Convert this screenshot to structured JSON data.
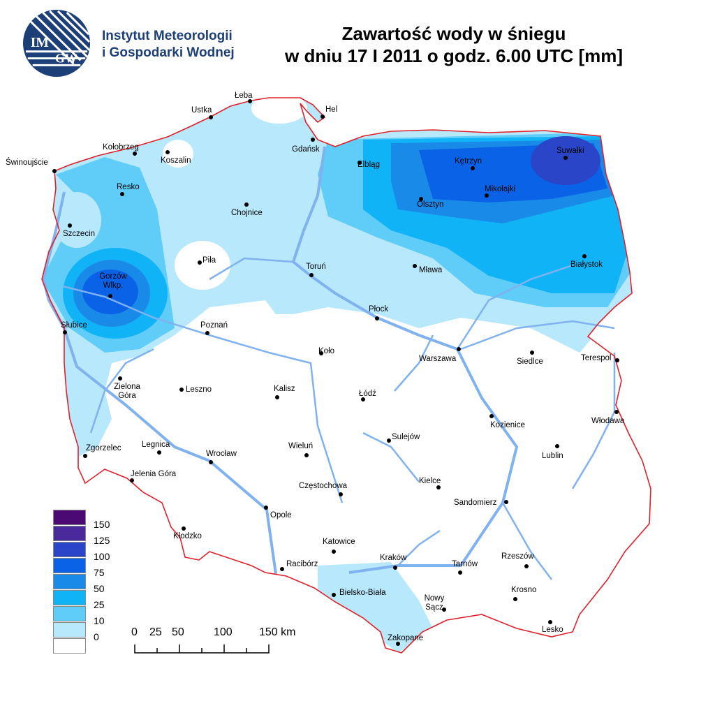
{
  "header": {
    "org_line1": "Instytut Meteorologii",
    "org_line2": "i Gospodarki Wodnej",
    "logo_text": "IMGW",
    "title_line1": "Zawartość wody w śniegu",
    "title_line2": "w dniu 17 I 2011 o godz. 6.00 UTC [mm]"
  },
  "legend": {
    "classes": [
      {
        "label": "150",
        "color": "#4b0a73"
      },
      {
        "label": "125",
        "color": "#4a2a9a"
      },
      {
        "label": "100",
        "color": "#2a45c8"
      },
      {
        "label": "75",
        "color": "#0a62e6"
      },
      {
        "label": "50",
        "color": "#1a8ae8"
      },
      {
        "label": "25",
        "color": "#10b4f6"
      },
      {
        "label": "10",
        "color": "#60ccf8"
      },
      {
        "label": "0",
        "color": "#b8e8fb"
      },
      {
        "label": "",
        "color": "#ffffff"
      }
    ]
  },
  "scale": {
    "labels": [
      "0",
      "25",
      "50",
      "100",
      "150 km"
    ]
  },
  "colors": {
    "border": "#e0202a",
    "river": "#7fb2ee"
  },
  "cities": [
    "Łeba",
    "Hel",
    "Ustka",
    "Kołobrzeg",
    "Koszalin",
    "Gdańsk",
    "Elbląg",
    "Kętrzyn",
    "Suwałki",
    "Świnoujście",
    "Resko",
    "Mikołajki",
    "Olsztyn",
    "Chojnice",
    "Szczecin",
    "Piła",
    "Toruń",
    "Mława",
    "Białystok",
    "Gorzów Wlkp.",
    "Płock",
    "Słubice",
    "Poznań",
    "Koło",
    "Warszawa",
    "Siedlce",
    "Terespol",
    "Zielona Góra",
    "Leszno",
    "Kalisz",
    "Łódź",
    "Kozienice",
    "Włodawa",
    "Sulejów",
    "Legnica",
    "Wrocław",
    "Wieluń",
    "Lublin",
    "Zgorzelec",
    "Jelenia Góra",
    "Częstochowa",
    "Kielce",
    "Opole",
    "Sandomierz",
    "Kłodzko",
    "Katowice",
    "Racibórz",
    "Kraków",
    "Tarnów",
    "Rzeszów",
    "Bielsko-Biała",
    "Nowy Sącz",
    "Krosno",
    "Lesko",
    "Zakopane"
  ]
}
